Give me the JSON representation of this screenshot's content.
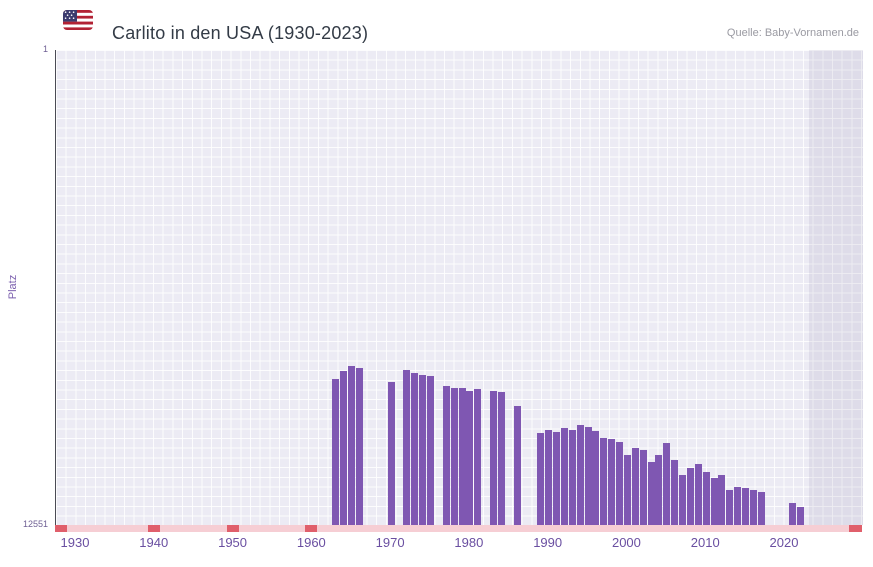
{
  "header": {
    "title": "Carlito in den USA (1930-2023)",
    "source": "Quelle: Baby-Vornamen.de",
    "flag": "us-flag-icon"
  },
  "chart_data": {
    "type": "bar",
    "title": "Carlito in den USA (1930-2023)",
    "ylabel": "Platz",
    "y_axis": {
      "top_tick": "1",
      "bottom_tick": "12551",
      "best": 1,
      "worst": 12551,
      "inverted": true
    },
    "x_range": [
      1930,
      2023
    ],
    "x_ticks": [
      "1930",
      "1940",
      "1950",
      "1960",
      "1970",
      "1980",
      "1990",
      "2000",
      "2010",
      "2020"
    ],
    "grid": true,
    "legend_position": "none",
    "colors": {
      "bar": "#7f57b2",
      "plot_bg": "#ecebf4",
      "grid": "#ffffff",
      "axis_strip": "#f6ced4",
      "no_rank_marker": "#e05f6b",
      "x_tick_label": "#6a4fa1",
      "highlight_band": "rgba(98,85,135,0.10)"
    },
    "points": [
      {
        "year": 1963,
        "rank": 8700
      },
      {
        "year": 1964,
        "rank": 8480
      },
      {
        "year": 1965,
        "rank": 8360
      },
      {
        "year": 1966,
        "rank": 8390
      },
      {
        "year": 1970,
        "rank": 8760
      },
      {
        "year": 1972,
        "rank": 8450
      },
      {
        "year": 1973,
        "rank": 8530
      },
      {
        "year": 1974,
        "rank": 8580
      },
      {
        "year": 1975,
        "rank": 8610
      },
      {
        "year": 1977,
        "rank": 8880
      },
      {
        "year": 1978,
        "rank": 8930
      },
      {
        "year": 1979,
        "rank": 8940
      },
      {
        "year": 1980,
        "rank": 9000
      },
      {
        "year": 1981,
        "rank": 8950
      },
      {
        "year": 1983,
        "rank": 9020
      },
      {
        "year": 1984,
        "rank": 9030
      },
      {
        "year": 1986,
        "rank": 9400
      },
      {
        "year": 1989,
        "rank": 10120
      },
      {
        "year": 1990,
        "rank": 10040
      },
      {
        "year": 1991,
        "rank": 10090
      },
      {
        "year": 1992,
        "rank": 9980
      },
      {
        "year": 1993,
        "rank": 10030
      },
      {
        "year": 1994,
        "rank": 9900
      },
      {
        "year": 1995,
        "rank": 9950
      },
      {
        "year": 1996,
        "rank": 10080
      },
      {
        "year": 1997,
        "rank": 10240
      },
      {
        "year": 1998,
        "rank": 10290
      },
      {
        "year": 1999,
        "rank": 10350
      },
      {
        "year": 2000,
        "rank": 10690
      },
      {
        "year": 2001,
        "rank": 10510
      },
      {
        "year": 2002,
        "rank": 10560
      },
      {
        "year": 2003,
        "rank": 10880
      },
      {
        "year": 2004,
        "rank": 10690
      },
      {
        "year": 2005,
        "rank": 10380
      },
      {
        "year": 2006,
        "rank": 10830
      },
      {
        "year": 2007,
        "rank": 11220
      },
      {
        "year": 2008,
        "rank": 11040
      },
      {
        "year": 2009,
        "rank": 10950
      },
      {
        "year": 2010,
        "rank": 11140
      },
      {
        "year": 2011,
        "rank": 11300
      },
      {
        "year": 2012,
        "rank": 11230
      },
      {
        "year": 2013,
        "rank": 11620
      },
      {
        "year": 2014,
        "rank": 11540
      },
      {
        "year": 2015,
        "rank": 11560
      },
      {
        "year": 2016,
        "rank": 11630
      },
      {
        "year": 2017,
        "rank": 11680
      },
      {
        "year": 2021,
        "rank": 11970
      },
      {
        "year": 2022,
        "rank": 12080
      }
    ],
    "axis_markers": {
      "left_edge": true,
      "years": [
        "1940",
        "1950",
        "1960"
      ],
      "right_edge": true
    }
  }
}
